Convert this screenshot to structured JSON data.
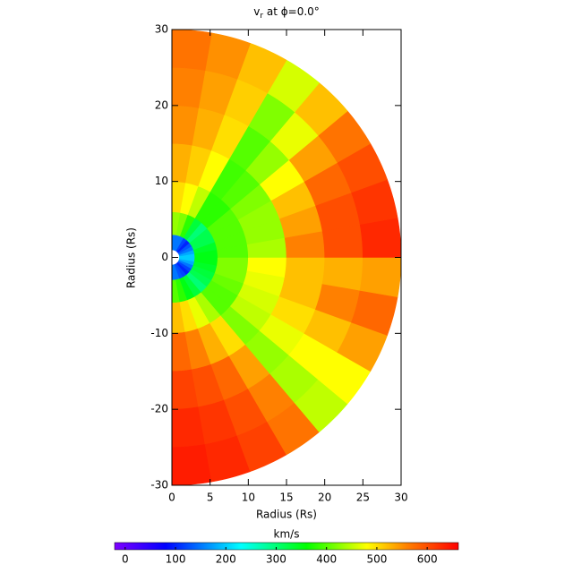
{
  "chart_data": {
    "type": "polar_heatmap",
    "title": {
      "main": "v",
      "sub": "r",
      "rest": " at ϕ=0.0°"
    },
    "xlabel": "Radius (Rs)",
    "ylabel": "Radius (Rs)",
    "xlim": [
      0,
      30
    ],
    "ylim": [
      -30,
      30
    ],
    "xticks": [
      0,
      5,
      10,
      15,
      20,
      25,
      30
    ],
    "yticks": [
      -30,
      -20,
      -10,
      0,
      10,
      20,
      30
    ],
    "theta_edges": [
      -90,
      -80,
      -70,
      -60,
      -50,
      -40,
      -30,
      -20,
      -10,
      0,
      10,
      20,
      30,
      40,
      50,
      60,
      70,
      80,
      90
    ],
    "r_edges": [
      1,
      3,
      6,
      10,
      15,
      20,
      25,
      30
    ],
    "values": [
      [
        150,
        400,
        520,
        580,
        610,
        630,
        640
      ],
      [
        150,
        380,
        500,
        560,
        600,
        620,
        630
      ],
      [
        130,
        350,
        470,
        530,
        580,
        600,
        610
      ],
      [
        120,
        330,
        440,
        500,
        540,
        560,
        570
      ],
      [
        100,
        300,
        400,
        420,
        430,
        440,
        450
      ],
      [
        120,
        320,
        400,
        450,
        470,
        480,
        480
      ],
      [
        150,
        330,
        410,
        460,
        500,
        520,
        540
      ],
      [
        180,
        340,
        420,
        470,
        520,
        560,
        580
      ],
      [
        200,
        350,
        420,
        480,
        520,
        530,
        540
      ],
      [
        200,
        350,
        400,
        440,
        560,
        600,
        630
      ],
      [
        180,
        340,
        400,
        430,
        540,
        600,
        620
      ],
      [
        150,
        320,
        400,
        430,
        520,
        580,
        600
      ],
      [
        130,
        320,
        400,
        420,
        480,
        540,
        570
      ],
      [
        100,
        300,
        380,
        400,
        430,
        470,
        520
      ],
      [
        120,
        330,
        380,
        390,
        400,
        420,
        460
      ],
      [
        150,
        380,
        450,
        480,
        500,
        510,
        520
      ],
      [
        150,
        420,
        480,
        510,
        530,
        540,
        550
      ],
      [
        150,
        430,
        500,
        530,
        550,
        560,
        570
      ]
    ],
    "colorbar": {
      "label": "km/s",
      "clim": [
        -21,
        662
      ],
      "ticks": [
        0,
        100,
        200,
        300,
        400,
        500,
        600
      ],
      "colormap": [
        {
          "value": -21,
          "color": "#7f00ff"
        },
        {
          "value": 80,
          "color": "#0000ff"
        },
        {
          "value": 230,
          "color": "#00ffff"
        },
        {
          "value": 360,
          "color": "#00ff00"
        },
        {
          "value": 480,
          "color": "#ffff00"
        },
        {
          "value": 560,
          "color": "#ff8000"
        },
        {
          "value": 662,
          "color": "#ff0000"
        }
      ]
    }
  }
}
